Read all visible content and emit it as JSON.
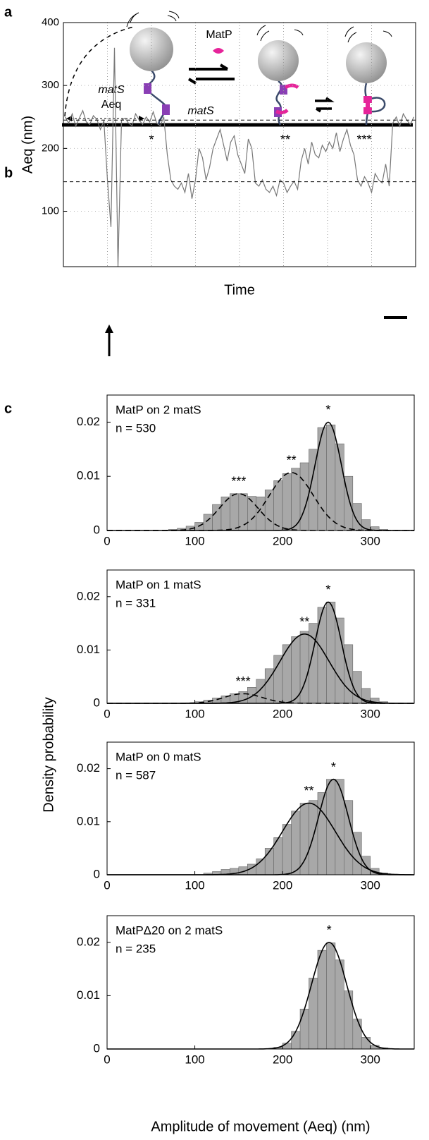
{
  "panel_labels": [
    "a",
    "b",
    "c"
  ],
  "diagram": {
    "protein": "MatP",
    "site": "matS",
    "extension": "Aeq",
    "site_on_dna": "matS",
    "states": [
      "*",
      "**",
      "***"
    ]
  },
  "panel_c": {
    "ylabel": "Density probability",
    "xlabel": "Amplitude of movement (Aeq) (nm)"
  },
  "chart_data": [
    {
      "type": "line",
      "ylabel": "Aeq (nm)",
      "xlabel": "Time",
      "ylim": [
        12,
        400
      ],
      "yticks": [
        100,
        200,
        300,
        400
      ],
      "reference_lines": [
        245,
        147
      ],
      "color": "#777777",
      "values": [
        250,
        240,
        255,
        235,
        248,
        260,
        242,
        238,
        252,
        246,
        230,
        244,
        150,
        75,
        360,
        12,
        245,
        248,
        240,
        236,
        255,
        245,
        238,
        250,
        242,
        258,
        240,
        236,
        250,
        190,
        150,
        140,
        135,
        145,
        130,
        160,
        120,
        150,
        200,
        185,
        150,
        170,
        200,
        215,
        230,
        205,
        180,
        210,
        220,
        190,
        175,
        160,
        215,
        200,
        145,
        140,
        150,
        135,
        130,
        140,
        125,
        150,
        145,
        130,
        140,
        148,
        135,
        180,
        200,
        175,
        210,
        190,
        185,
        205,
        195,
        210,
        200,
        225,
        195,
        215,
        230,
        205,
        190,
        150,
        140,
        155,
        145,
        130,
        160,
        150,
        145,
        175,
        140,
        240,
        250,
        235,
        255,
        245,
        238,
        250
      ]
    },
    {
      "type": "histogram",
      "annotation": [
        "MatP on 2 matS",
        "n = 530"
      ],
      "color": "#a8a8a8",
      "bins": [
        0,
        10,
        20,
        30,
        40,
        50,
        60,
        70,
        80,
        90,
        100,
        110,
        120,
        130,
        140,
        150,
        160,
        170,
        180,
        190,
        200,
        210,
        220,
        230,
        240,
        250,
        260,
        270,
        280,
        290,
        300,
        310,
        320,
        330,
        340,
        350
      ],
      "counts": [
        0,
        0,
        0,
        0,
        0,
        0,
        0,
        0.0002,
        0.0004,
        0.0008,
        0.0015,
        0.003,
        0.0048,
        0.0062,
        0.0068,
        0.0068,
        0.0063,
        0.0062,
        0.0075,
        0.0092,
        0.0105,
        0.0115,
        0.0125,
        0.015,
        0.019,
        0.0195,
        0.016,
        0.01,
        0.005,
        0.002,
        0.0007,
        0.0002,
        0,
        0,
        0
      ],
      "xlim": [
        0,
        350
      ],
      "xticks": [
        0,
        100,
        200,
        300
      ],
      "ylim": [
        0,
        0.025
      ],
      "yticks": [
        0,
        0.01,
        0.02
      ],
      "fits": [
        {
          "label": "***",
          "mean": 150,
          "sd": 22,
          "peak": 0.0068,
          "style": "dashed"
        },
        {
          "label": "**",
          "mean": 210,
          "sd": 25,
          "peak": 0.0107,
          "style": "dashed"
        },
        {
          "label": "*",
          "mean": 252,
          "sd": 15,
          "peak": 0.02,
          "style": "solid"
        }
      ]
    },
    {
      "type": "histogram",
      "annotation": [
        "MatP on 1 matS",
        "n = 331"
      ],
      "color": "#a8a8a8",
      "bins": [
        0,
        10,
        20,
        30,
        40,
        50,
        60,
        70,
        80,
        90,
        100,
        110,
        120,
        130,
        140,
        150,
        160,
        170,
        180,
        190,
        200,
        210,
        220,
        230,
        240,
        250,
        260,
        270,
        280,
        290,
        300,
        310,
        320,
        330,
        340,
        350
      ],
      "counts": [
        0,
        0,
        0,
        0,
        0,
        0,
        0,
        0,
        0,
        0.0001,
        0.0003,
        0.0006,
        0.001,
        0.0014,
        0.0018,
        0.0022,
        0.003,
        0.0045,
        0.0065,
        0.009,
        0.011,
        0.0125,
        0.0135,
        0.015,
        0.018,
        0.019,
        0.016,
        0.011,
        0.006,
        0.0028,
        0.001,
        0.0003,
        0,
        0,
        0
      ],
      "xlim": [
        0,
        350
      ],
      "xticks": [
        0,
        100,
        200,
        300
      ],
      "ylim": [
        0,
        0.025
      ],
      "yticks": [
        0,
        0.01,
        0.02
      ],
      "fits": [
        {
          "label": "***",
          "mean": 155,
          "sd": 22,
          "peak": 0.0018,
          "style": "dashed"
        },
        {
          "label": "**",
          "mean": 225,
          "sd": 28,
          "peak": 0.013,
          "style": "solid"
        },
        {
          "label": "*",
          "mean": 252,
          "sd": 15,
          "peak": 0.019,
          "style": "solid"
        }
      ]
    },
    {
      "type": "histogram",
      "annotation": [
        "MatP on 0 matS",
        "n = 587"
      ],
      "color": "#a8a8a8",
      "bins": [
        0,
        10,
        20,
        30,
        40,
        50,
        60,
        70,
        80,
        90,
        100,
        110,
        120,
        130,
        140,
        150,
        160,
        170,
        180,
        190,
        200,
        210,
        220,
        230,
        240,
        250,
        260,
        270,
        280,
        290,
        300,
        310,
        320,
        330,
        340,
        350
      ],
      "counts": [
        0,
        0,
        0,
        0,
        0,
        0,
        0,
        0,
        0,
        0,
        0,
        0.0003,
        0.0006,
        0.001,
        0.0012,
        0.0015,
        0.002,
        0.003,
        0.005,
        0.007,
        0.0095,
        0.012,
        0.0135,
        0.014,
        0.0155,
        0.018,
        0.018,
        0.014,
        0.008,
        0.0035,
        0.0012,
        0.0003,
        0,
        0,
        0
      ],
      "xlim": [
        0,
        350
      ],
      "xticks": [
        0,
        100,
        200,
        300
      ],
      "ylim": [
        0,
        0.025
      ],
      "yticks": [
        0,
        0.01,
        0.02
      ],
      "fits": [
        {
          "label": "**",
          "mean": 230,
          "sd": 30,
          "peak": 0.0135,
          "style": "solid"
        },
        {
          "label": "*",
          "mean": 258,
          "sd": 17,
          "peak": 0.018,
          "style": "solid"
        }
      ]
    },
    {
      "type": "histogram",
      "annotation": [
        "MatPΔ20 on 2 matS",
        "n = 235"
      ],
      "color": "#a8a8a8",
      "bins": [
        0,
        10,
        20,
        30,
        40,
        50,
        60,
        70,
        80,
        90,
        100,
        110,
        120,
        130,
        140,
        150,
        160,
        170,
        180,
        190,
        200,
        210,
        220,
        230,
        240,
        250,
        260,
        270,
        280,
        290,
        300,
        310,
        320,
        330,
        340,
        350
      ],
      "counts": [
        0,
        0,
        0,
        0,
        0,
        0,
        0,
        0,
        0,
        0,
        0,
        0,
        0,
        0,
        0,
        0,
        0,
        0,
        0,
        0.0003,
        0.0011,
        0.0033,
        0.0075,
        0.0133,
        0.0185,
        0.0199,
        0.0167,
        0.0109,
        0.0056,
        0.0022,
        0.0007,
        0.0002,
        0,
        0,
        0
      ],
      "xlim": [
        0,
        350
      ],
      "xticks": [
        0,
        100,
        200,
        300
      ],
      "ylim": [
        0,
        0.025
      ],
      "yticks": [
        0,
        0.01,
        0.02
      ],
      "fits": [
        {
          "label": "*",
          "mean": 253,
          "sd": 20,
          "peak": 0.02,
          "style": "solid"
        }
      ]
    }
  ]
}
